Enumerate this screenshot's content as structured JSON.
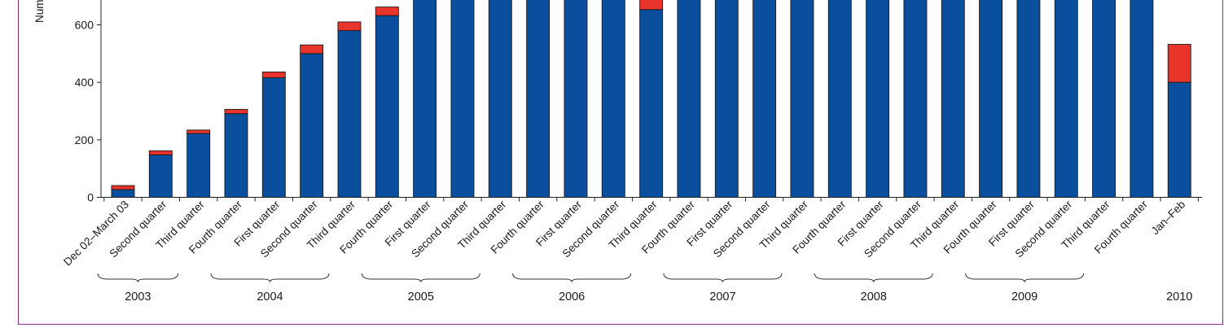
{
  "chart_data": {
    "type": "bar",
    "stacked": true,
    "ylabel": "Number",
    "ylim": [
      0,
      700
    ],
    "yticks": [
      0,
      200,
      400,
      600
    ],
    "categories": [
      "Dec 02–March 03",
      "Second quarter",
      "Third quarter",
      "Fourth quarter",
      "First quarter",
      "Second quarter",
      "Third quarter",
      "Fourth quarter",
      "First quarter",
      "Second quarter",
      "Third quarter",
      "Fourth quarter",
      "First quarter",
      "Second quarter",
      "Third quarter",
      "Fourth quarter",
      "First quarter",
      "Second quarter",
      "Third quarter",
      "Fourth quarter",
      "First quarter",
      "Second quarter",
      "Third quarter",
      "Fourth quarter",
      "First quarter",
      "Second quarter",
      "Third quarter",
      "Fourth quarter",
      "Jan–Feb"
    ],
    "series": [
      {
        "color": "#0a4f9e",
        "values": [
          27,
          148,
          222,
          291,
          416,
          500,
          580,
          632,
          700,
          700,
          700,
          700,
          700,
          700,
          653,
          700,
          700,
          700,
          700,
          700,
          700,
          700,
          700,
          700,
          700,
          700,
          700,
          700,
          400
        ]
      },
      {
        "color": "#e8342a",
        "values": [
          14,
          14,
          12,
          15,
          20,
          30,
          30,
          30,
          0,
          0,
          0,
          0,
          0,
          0,
          47,
          0,
          0,
          0,
          0,
          0,
          0,
          0,
          0,
          0,
          0,
          0,
          0,
          0,
          132
        ]
      }
    ],
    "year_groups": [
      {
        "label": "2003",
        "from": 0,
        "to": 2,
        "brace": true
      },
      {
        "label": "2004",
        "from": 3,
        "to": 6,
        "brace": true
      },
      {
        "label": "2005",
        "from": 7,
        "to": 10,
        "brace": true
      },
      {
        "label": "2006",
        "from": 11,
        "to": 14,
        "brace": true
      },
      {
        "label": "2007",
        "from": 15,
        "to": 18,
        "brace": true
      },
      {
        "label": "2008",
        "from": 19,
        "to": 22,
        "brace": true
      },
      {
        "label": "2009",
        "from": 23,
        "to": 26,
        "brace": true
      },
      {
        "label": "2010",
        "from": 28,
        "to": 28,
        "brace": false
      }
    ],
    "grid": false
  }
}
